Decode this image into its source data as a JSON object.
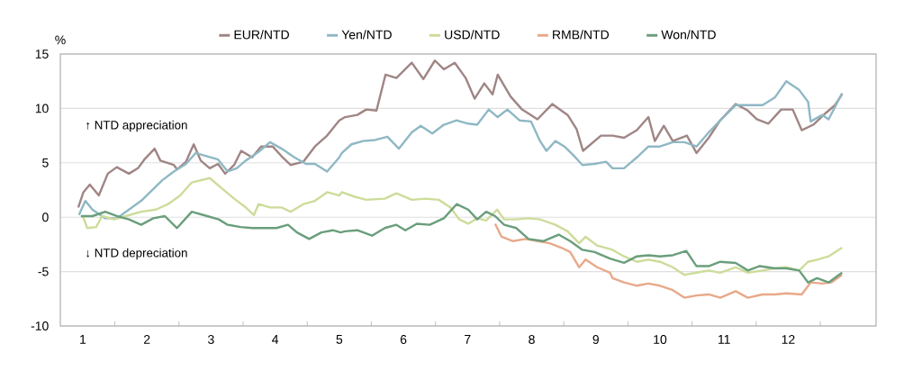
{
  "chart_data": {
    "type": "line",
    "ylabel": "%",
    "xlim": [
      0.65,
      13.37
    ],
    "ylim": [
      -10,
      15
    ],
    "xticks": [
      1,
      2,
      3,
      4,
      5,
      6,
      7,
      8,
      9,
      10,
      11,
      12,
      {
        "value": 1.5,
        "label": null
      },
      {
        "value": 2.5,
        "label": null
      },
      {
        "value": 3.5,
        "label": null
      },
      {
        "value": 4.5,
        "label": null
      },
      {
        "value": 5.5,
        "label": null
      },
      {
        "value": 6.5,
        "label": null
      },
      {
        "value": 7.5,
        "label": null
      },
      {
        "value": 8.5,
        "label": null
      },
      {
        "value": 9.5,
        "label": null
      },
      {
        "value": 10.5,
        "label": null
      },
      {
        "value": 11.5,
        "label": null
      },
      {
        "value": 12.5,
        "label": null
      }
    ],
    "yticks": [
      -10,
      -5,
      0,
      5,
      10,
      15
    ],
    "grid": "y",
    "legend": "top",
    "annotations": [
      "↑ NTD appreciation",
      "↓ NTD depreciation"
    ],
    "series": [
      {
        "name": "EUR/NTD",
        "color": "#a08585",
        "x": [
          0.93,
          1.01,
          1.11,
          1.25,
          1.39,
          1.53,
          1.72,
          1.86,
          1.96,
          2.12,
          2.21,
          2.42,
          2.47,
          2.61,
          2.73,
          2.84,
          2.98,
          3.11,
          3.22,
          3.36,
          3.47,
          3.64,
          3.78,
          3.96,
          4.1,
          4.24,
          4.44,
          4.62,
          4.81,
          5.0,
          5.09,
          5.28,
          5.42,
          5.58,
          5.72,
          5.89,
          6.13,
          6.31,
          6.49,
          6.63,
          6.8,
          6.97,
          7.11,
          7.26,
          7.39,
          7.47,
          7.67,
          7.85,
          8.09,
          8.32,
          8.56,
          8.7,
          8.8,
          9.08,
          9.26,
          9.44,
          9.64,
          9.82,
          9.92,
          10.06,
          10.2,
          10.42,
          10.57,
          10.76,
          10.94,
          11.18,
          11.37,
          11.51,
          11.69,
          11.89,
          12.07,
          12.21,
          12.39,
          12.59,
          12.73,
          12.84
        ],
        "values": [
          0.9,
          2.3,
          3.0,
          2.0,
          4.0,
          4.6,
          4.0,
          4.5,
          5.3,
          6.3,
          5.2,
          4.8,
          4.4,
          5.1,
          6.7,
          5.2,
          4.5,
          4.9,
          4.0,
          4.8,
          6.1,
          5.5,
          6.5,
          6.5,
          5.6,
          4.8,
          5.1,
          6.5,
          7.5,
          8.9,
          9.2,
          9.4,
          9.9,
          9.8,
          13.1,
          12.8,
          14.2,
          12.7,
          14.4,
          13.6,
          14.2,
          12.8,
          10.9,
          12.3,
          11.3,
          13.1,
          11.1,
          9.9,
          9.0,
          10.4,
          9.4,
          8.1,
          6.1,
          7.5,
          7.5,
          7.3,
          8.0,
          9.2,
          7.0,
          8.4,
          7.0,
          7.5,
          5.9,
          7.3,
          8.9,
          10.4,
          9.8,
          9.0,
          8.6,
          9.9,
          9.9,
          8.0,
          8.5,
          9.6,
          10.3,
          11.3
        ]
      },
      {
        "name": "Yen/NTD",
        "color": "#8fb8c4",
        "x": [
          0.94,
          1.04,
          1.15,
          1.35,
          1.53,
          1.72,
          1.91,
          2.1,
          2.24,
          2.42,
          2.61,
          2.76,
          2.94,
          3.11,
          3.26,
          3.4,
          3.54,
          3.74,
          3.92,
          4.1,
          4.3,
          4.48,
          4.62,
          4.81,
          5.0,
          5.04,
          5.19,
          5.37,
          5.56,
          5.75,
          5.93,
          6.13,
          6.27,
          6.45,
          6.63,
          6.83,
          7.01,
          7.15,
          7.33,
          7.47,
          7.62,
          7.81,
          7.99,
          8.13,
          8.23,
          8.37,
          8.51,
          8.65,
          8.79,
          8.98,
          9.16,
          9.26,
          9.44,
          9.64,
          9.82,
          10.0,
          10.2,
          10.38,
          10.57,
          10.76,
          10.94,
          11.18,
          11.37,
          11.6,
          11.79,
          11.97,
          12.17,
          12.31,
          12.35,
          12.53,
          12.63,
          12.84
        ],
        "values": [
          0.2,
          1.5,
          0.7,
          -0.1,
          -0.1,
          0.7,
          1.5,
          2.6,
          3.4,
          4.2,
          4.9,
          5.9,
          5.6,
          5.3,
          4.2,
          4.5,
          5.2,
          6.0,
          6.9,
          6.3,
          5.5,
          4.9,
          4.9,
          4.2,
          5.5,
          5.9,
          6.7,
          7.0,
          7.1,
          7.4,
          6.3,
          7.8,
          8.4,
          7.7,
          8.5,
          8.9,
          8.6,
          8.5,
          9.9,
          9.2,
          9.9,
          8.9,
          8.8,
          7.0,
          6.1,
          7.0,
          6.5,
          5.7,
          4.8,
          4.9,
          5.1,
          4.5,
          4.5,
          5.5,
          6.5,
          6.5,
          6.9,
          6.9,
          6.5,
          7.8,
          8.9,
          10.3,
          10.3,
          10.3,
          11.0,
          12.5,
          11.7,
          10.6,
          8.8,
          9.4,
          9.0,
          11.4
        ]
      },
      {
        "name": "USD/NTD",
        "color": "#cddc9a",
        "x": [
          1.0,
          1.07,
          1.21,
          1.3,
          1.49,
          1.67,
          1.91,
          2.14,
          2.33,
          2.52,
          2.7,
          2.98,
          3.18,
          3.36,
          3.54,
          3.67,
          3.74,
          3.92,
          4.1,
          4.24,
          4.44,
          4.62,
          4.81,
          5.0,
          5.04,
          5.23,
          5.42,
          5.71,
          5.89,
          6.13,
          6.35,
          6.55,
          6.73,
          6.87,
          7.01,
          7.15,
          7.29,
          7.46,
          7.57,
          7.76,
          7.95,
          8.13,
          8.37,
          8.56,
          8.74,
          8.84,
          9.02,
          9.26,
          9.44,
          9.64,
          9.82,
          10.0,
          10.2,
          10.38,
          10.57,
          10.76,
          10.94,
          11.18,
          11.37,
          11.6,
          11.79,
          11.97,
          12.17,
          12.31,
          12.45,
          12.63,
          12.84
        ],
        "values": [
          0.1,
          -1.0,
          -0.9,
          0.1,
          -0.2,
          0.1,
          0.5,
          0.7,
          1.2,
          2.0,
          3.2,
          3.6,
          2.6,
          1.7,
          0.9,
          0.2,
          1.2,
          0.9,
          0.9,
          0.5,
          1.2,
          1.5,
          2.3,
          2.0,
          2.3,
          1.9,
          1.6,
          1.7,
          2.2,
          1.6,
          1.7,
          1.6,
          0.9,
          -0.2,
          -0.6,
          -0.1,
          -0.3,
          0.7,
          -0.2,
          -0.2,
          -0.1,
          -0.2,
          -0.7,
          -1.3,
          -2.4,
          -1.8,
          -2.6,
          -3.0,
          -3.6,
          -4.1,
          -3.9,
          -4.1,
          -4.6,
          -5.3,
          -5.1,
          -4.9,
          -5.1,
          -4.6,
          -5.1,
          -4.9,
          -4.7,
          -4.6,
          -4.9,
          -4.1,
          -3.9,
          -3.6,
          -2.8
        ]
      },
      {
        "name": "RMB/NTD",
        "color": "#e8a98a",
        "x": [
          7.43,
          7.53,
          7.71,
          7.9,
          8.09,
          8.28,
          8.46,
          8.6,
          8.74,
          8.84,
          9.02,
          9.22,
          9.26,
          9.44,
          9.64,
          9.82,
          10.0,
          10.2,
          10.38,
          10.57,
          10.76,
          10.94,
          11.18,
          11.37,
          11.6,
          11.79,
          11.97,
          12.21,
          12.35,
          12.53,
          12.67,
          12.84
        ],
        "values": [
          -0.6,
          -1.8,
          -2.2,
          -2.0,
          -2.2,
          -2.4,
          -2.8,
          -3.2,
          -4.6,
          -3.9,
          -4.6,
          -5.1,
          -5.6,
          -6.0,
          -6.3,
          -6.1,
          -6.3,
          -6.7,
          -7.4,
          -7.2,
          -7.1,
          -7.4,
          -6.8,
          -7.4,
          -7.1,
          -7.1,
          -7.0,
          -7.1,
          -6.0,
          -6.1,
          -6.0,
          -5.3
        ]
      },
      {
        "name": "Won/NTD",
        "color": "#6a9e7c",
        "x": [
          0.97,
          1.15,
          1.35,
          1.53,
          1.72,
          1.91,
          2.1,
          2.28,
          2.47,
          2.7,
          2.94,
          3.12,
          3.26,
          3.46,
          3.64,
          3.82,
          4.02,
          4.2,
          4.34,
          4.53,
          4.72,
          4.9,
          5.02,
          5.09,
          5.28,
          5.51,
          5.71,
          5.89,
          6.03,
          6.21,
          6.41,
          6.63,
          6.83,
          7.01,
          7.15,
          7.29,
          7.43,
          7.57,
          7.76,
          7.95,
          8.18,
          8.42,
          8.6,
          8.79,
          8.98,
          9.22,
          9.44,
          9.64,
          9.82,
          10.0,
          10.2,
          10.41,
          10.57,
          10.76,
          10.94,
          11.18,
          11.37,
          11.55,
          11.79,
          11.97,
          12.17,
          12.31,
          12.45,
          12.63,
          12.84
        ],
        "values": [
          0.1,
          0.1,
          0.5,
          0.1,
          -0.2,
          -0.7,
          -0.1,
          0.1,
          -1.0,
          0.5,
          0.1,
          -0.2,
          -0.7,
          -0.9,
          -1.0,
          -1.0,
          -1.0,
          -0.7,
          -1.4,
          -2.0,
          -1.4,
          -1.2,
          -1.4,
          -1.3,
          -1.2,
          -1.7,
          -1.0,
          -0.7,
          -1.2,
          -0.6,
          -0.7,
          -0.1,
          1.2,
          0.7,
          -0.2,
          0.5,
          0.1,
          -0.7,
          -1.0,
          -2.0,
          -2.2,
          -1.6,
          -2.2,
          -3.0,
          -3.2,
          -3.8,
          -4.2,
          -3.6,
          -3.5,
          -3.6,
          -3.5,
          -3.1,
          -4.5,
          -4.5,
          -4.1,
          -4.2,
          -4.9,
          -4.5,
          -4.7,
          -4.7,
          -4.9,
          -6.0,
          -5.6,
          -6.0,
          -5.1
        ]
      }
    ]
  }
}
